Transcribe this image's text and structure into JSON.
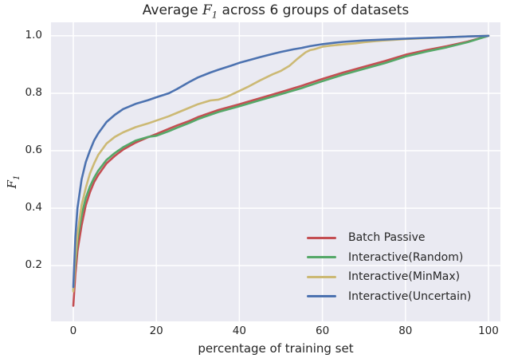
{
  "title_parts": {
    "prefix": "Average ",
    "var": "F",
    "sub": "1",
    "suffix": " across 6 groups of datasets"
  },
  "ylabel_parts": {
    "var": "F",
    "sub": "1"
  },
  "style": {
    "figure_background": "#ffffff",
    "plot_background": "#EAEAF2",
    "grid_color": "#ffffff",
    "text_color": "#262626"
  },
  "chart_data": {
    "type": "line",
    "title": "Average F1 across 6 groups of datasets",
    "xlabel": "percentage of training set",
    "ylabel": "F1",
    "grid": true,
    "legend_position": "lower right",
    "xlim": [
      -5.37,
      102.88
    ],
    "ylim": [
      0.006,
      1.047
    ],
    "xticks": [
      0,
      20,
      40,
      60,
      80,
      100
    ],
    "xtick_labels": [
      "0",
      "20",
      "40",
      "60",
      "80",
      "100"
    ],
    "yticks": [
      0.2,
      0.4,
      0.6,
      0.8,
      1.0
    ],
    "ytick_labels": [
      "0.2",
      "0.4",
      "0.6",
      "0.8",
      "1.0"
    ],
    "series": [
      {
        "name": "Batch Passive",
        "color": "#C44E52",
        "x": [
          0,
          0.5,
          1,
          2,
          3,
          4,
          5,
          6,
          8,
          10,
          12,
          15,
          18,
          20,
          23,
          25,
          28,
          30,
          35,
          40,
          45,
          50,
          55,
          60,
          65,
          70,
          75,
          80,
          85,
          90,
          95,
          100
        ],
        "y": [
          0.06,
          0.17,
          0.25,
          0.34,
          0.41,
          0.455,
          0.49,
          0.515,
          0.556,
          0.582,
          0.604,
          0.628,
          0.647,
          0.658,
          0.676,
          0.688,
          0.704,
          0.717,
          0.742,
          0.762,
          0.783,
          0.804,
          0.826,
          0.85,
          0.872,
          0.892,
          0.912,
          0.934,
          0.95,
          0.964,
          0.98,
          1.0
        ]
      },
      {
        "name": "Interactive(Random)",
        "color": "#55A868",
        "x": [
          0,
          0.5,
          1,
          2,
          3,
          4,
          5,
          6,
          8,
          10,
          12,
          15,
          18,
          20,
          23,
          25,
          28,
          30,
          35,
          40,
          45,
          50,
          55,
          60,
          65,
          70,
          75,
          80,
          85,
          90,
          95,
          100
        ],
        "y": [
          0.115,
          0.21,
          0.29,
          0.375,
          0.435,
          0.475,
          0.505,
          0.53,
          0.568,
          0.592,
          0.612,
          0.635,
          0.648,
          0.652,
          0.668,
          0.68,
          0.697,
          0.71,
          0.735,
          0.755,
          0.776,
          0.797,
          0.818,
          0.842,
          0.865,
          0.885,
          0.905,
          0.928,
          0.945,
          0.96,
          0.978,
          1.0
        ]
      },
      {
        "name": "Interactive(MinMax)",
        "color": "#CCB974",
        "x": [
          0,
          0.5,
          1,
          2,
          3,
          4,
          5,
          6,
          8,
          10,
          12,
          15,
          18,
          20,
          23,
          25,
          28,
          30,
          33,
          35,
          37,
          40,
          42,
          45,
          48,
          50,
          52,
          54,
          56,
          57,
          58,
          60,
          62,
          65,
          68,
          70,
          73,
          75,
          80,
          85,
          90,
          95,
          100
        ],
        "y": [
          0.11,
          0.23,
          0.31,
          0.41,
          0.47,
          0.52,
          0.555,
          0.585,
          0.625,
          0.648,
          0.664,
          0.682,
          0.695,
          0.705,
          0.72,
          0.732,
          0.75,
          0.762,
          0.775,
          0.778,
          0.788,
          0.808,
          0.822,
          0.845,
          0.866,
          0.878,
          0.895,
          0.92,
          0.943,
          0.95,
          0.953,
          0.962,
          0.966,
          0.97,
          0.974,
          0.978,
          0.982,
          0.984,
          0.989,
          0.992,
          0.995,
          0.998,
          1.0
        ]
      },
      {
        "name": "Interactive(Uncertain)",
        "color": "#4C72B0",
        "x": [
          0,
          0.5,
          1,
          2,
          3,
          4,
          5,
          6,
          8,
          10,
          12,
          15,
          18,
          20,
          23,
          25,
          28,
          30,
          33,
          35,
          38,
          40,
          43,
          45,
          48,
          50,
          53,
          55,
          57,
          60,
          63,
          65,
          70,
          75,
          80,
          85,
          90,
          95,
          100
        ],
        "y": [
          0.125,
          0.3,
          0.4,
          0.5,
          0.56,
          0.6,
          0.635,
          0.66,
          0.7,
          0.725,
          0.745,
          0.763,
          0.776,
          0.786,
          0.8,
          0.815,
          0.84,
          0.855,
          0.872,
          0.882,
          0.896,
          0.906,
          0.918,
          0.926,
          0.937,
          0.944,
          0.953,
          0.958,
          0.964,
          0.971,
          0.976,
          0.979,
          0.984,
          0.987,
          0.99,
          0.993,
          0.995,
          0.998,
          1.0
        ]
      }
    ]
  }
}
